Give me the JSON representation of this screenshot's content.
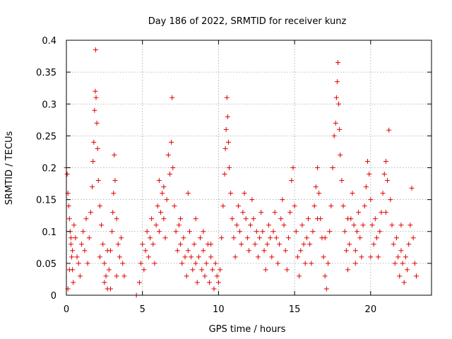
{
  "chart_data": {
    "type": "scatter",
    "title": "Day 186 of 2022, SRMTID for receiver kunz",
    "xlabel": "GPS time / hours",
    "ylabel": "SRMTID / TECUs",
    "xlim": [
      0,
      24
    ],
    "ylim": [
      0,
      0.4
    ],
    "xticks": [
      0,
      5,
      10,
      15,
      20
    ],
    "xtick_labels": [
      "0",
      "5",
      "10",
      "15",
      "20"
    ],
    "yticks": [
      0,
      0.05,
      0.1,
      0.15,
      0.2,
      0.25,
      0.3,
      0.35,
      0.4
    ],
    "ytick_labels": [
      "0",
      "0.05",
      "0.1",
      "0.15",
      "0.2",
      "0.25",
      "0.3",
      "0.35",
      "0.4"
    ],
    "grid": true,
    "marker": "plus",
    "color": "#e00000",
    "series": [
      {
        "name": "SRMTID",
        "points": [
          [
            0.0,
            0.2
          ],
          [
            0.05,
            0.19
          ],
          [
            0.1,
            0.16
          ],
          [
            0.15,
            0.14
          ],
          [
            0.2,
            0.12
          ],
          [
            0.25,
            0.1
          ],
          [
            0.3,
            0.08
          ],
          [
            0.35,
            0.06
          ],
          [
            0.4,
            0.04
          ],
          [
            0.45,
            0.02
          ],
          [
            0.1,
            0.01
          ],
          [
            0.2,
            0.04
          ],
          [
            0.3,
            0.09
          ],
          [
            0.4,
            0.07
          ],
          [
            0.5,
            0.11
          ],
          [
            0.6,
            0.09
          ],
          [
            0.7,
            0.06
          ],
          [
            0.8,
            0.05
          ],
          [
            0.9,
            0.03
          ],
          [
            1.0,
            0.08
          ],
          [
            1.1,
            0.1
          ],
          [
            1.2,
            0.07
          ],
          [
            1.3,
            0.12
          ],
          [
            1.4,
            0.05
          ],
          [
            1.5,
            0.09
          ],
          [
            1.6,
            0.13
          ],
          [
            1.7,
            0.17
          ],
          [
            1.75,
            0.21
          ],
          [
            1.8,
            0.24
          ],
          [
            1.85,
            0.29
          ],
          [
            1.9,
            0.32
          ],
          [
            1.92,
            0.385
          ],
          [
            1.95,
            0.31
          ],
          [
            2.0,
            0.27
          ],
          [
            2.05,
            0.23
          ],
          [
            2.1,
            0.18
          ],
          [
            2.2,
            0.14
          ],
          [
            2.3,
            0.11
          ],
          [
            2.4,
            0.08
          ],
          [
            2.5,
            0.05
          ],
          [
            2.6,
            0.03
          ],
          [
            2.7,
            0.01
          ],
          [
            2.8,
            0.04
          ],
          [
            2.9,
            0.07
          ],
          [
            3.0,
            0.1
          ],
          [
            3.05,
            0.13
          ],
          [
            3.1,
            0.16
          ],
          [
            3.15,
            0.22
          ],
          [
            3.2,
            0.18
          ],
          [
            3.3,
            0.12
          ],
          [
            3.4,
            0.08
          ],
          [
            3.5,
            0.06
          ],
          [
            3.6,
            0.09
          ],
          [
            3.7,
            0.05
          ],
          [
            3.8,
            0.03
          ],
          [
            2.2,
            0.06
          ],
          [
            2.5,
            0.02
          ],
          [
            2.7,
            0.07
          ],
          [
            2.9,
            0.01
          ],
          [
            3.3,
            0.03
          ],
          [
            4.6,
            0.0
          ],
          [
            4.8,
            0.02
          ],
          [
            4.9,
            0.05
          ],
          [
            5.0,
            0.08
          ],
          [
            5.1,
            0.04
          ],
          [
            5.2,
            0.07
          ],
          [
            5.3,
            0.1
          ],
          [
            5.4,
            0.06
          ],
          [
            5.5,
            0.09
          ],
          [
            5.6,
            0.12
          ],
          [
            5.7,
            0.08
          ],
          [
            5.8,
            0.05
          ],
          [
            5.9,
            0.11
          ],
          [
            6.0,
            0.14
          ],
          [
            6.1,
            0.1
          ],
          [
            6.2,
            0.13
          ],
          [
            6.3,
            0.16
          ],
          [
            6.4,
            0.12
          ],
          [
            6.5,
            0.09
          ],
          [
            6.6,
            0.15
          ],
          [
            6.7,
            0.22
          ],
          [
            6.8,
            0.19
          ],
          [
            6.9,
            0.24
          ],
          [
            6.95,
            0.31
          ],
          [
            7.0,
            0.2
          ],
          [
            7.1,
            0.14
          ],
          [
            7.2,
            0.1
          ],
          [
            7.3,
            0.07
          ],
          [
            7.4,
            0.11
          ],
          [
            7.5,
            0.08
          ],
          [
            7.6,
            0.05
          ],
          [
            7.7,
            0.09
          ],
          [
            7.8,
            0.06
          ],
          [
            7.9,
            0.03
          ],
          [
            8.0,
            0.07
          ],
          [
            8.1,
            0.1
          ],
          [
            8.2,
            0.06
          ],
          [
            8.3,
            0.04
          ],
          [
            8.4,
            0.08
          ],
          [
            8.5,
            0.05
          ],
          [
            8.6,
            0.02
          ],
          [
            8.7,
            0.06
          ],
          [
            8.8,
            0.09
          ],
          [
            8.9,
            0.04
          ],
          [
            9.0,
            0.07
          ],
          [
            9.1,
            0.03
          ],
          [
            9.2,
            0.05
          ],
          [
            9.3,
            0.08
          ],
          [
            9.4,
            0.02
          ],
          [
            9.5,
            0.06
          ],
          [
            9.6,
            0.04
          ],
          [
            9.7,
            0.01
          ],
          [
            9.8,
            0.05
          ],
          [
            9.9,
            0.03
          ],
          [
            10.0,
            0.02
          ],
          [
            6.4,
            0.17
          ],
          [
            6.1,
            0.18
          ],
          [
            7.5,
            0.12
          ],
          [
            8.0,
            0.16
          ],
          [
            8.5,
            0.12
          ],
          [
            9.0,
            0.1
          ],
          [
            9.5,
            0.08
          ],
          [
            10.1,
            0.04
          ],
          [
            10.2,
            0.09
          ],
          [
            10.3,
            0.14
          ],
          [
            10.4,
            0.19
          ],
          [
            10.45,
            0.23
          ],
          [
            10.5,
            0.26
          ],
          [
            10.55,
            0.31
          ],
          [
            10.6,
            0.28
          ],
          [
            10.65,
            0.24
          ],
          [
            10.7,
            0.2
          ],
          [
            10.8,
            0.16
          ],
          [
            10.9,
            0.12
          ],
          [
            11.0,
            0.09
          ],
          [
            11.1,
            0.06
          ],
          [
            11.2,
            0.11
          ],
          [
            11.3,
            0.14
          ],
          [
            11.4,
            0.1
          ],
          [
            11.5,
            0.08
          ],
          [
            11.6,
            0.13
          ],
          [
            11.7,
            0.16
          ],
          [
            11.8,
            0.12
          ],
          [
            11.9,
            0.09
          ],
          [
            12.0,
            0.07
          ],
          [
            12.1,
            0.11
          ],
          [
            12.2,
            0.15
          ],
          [
            12.3,
            0.12
          ],
          [
            12.4,
            0.08
          ],
          [
            12.5,
            0.1
          ],
          [
            12.6,
            0.06
          ],
          [
            12.7,
            0.09
          ],
          [
            12.8,
            0.13
          ],
          [
            12.9,
            0.1
          ],
          [
            13.0,
            0.07
          ],
          [
            13.1,
            0.04
          ],
          [
            13.2,
            0.08
          ],
          [
            13.3,
            0.11
          ],
          [
            13.4,
            0.09
          ],
          [
            13.5,
            0.06
          ],
          [
            13.6,
            0.1
          ],
          [
            13.7,
            0.13
          ],
          [
            13.8,
            0.09
          ],
          [
            13.9,
            0.05
          ],
          [
            14.0,
            0.08
          ],
          [
            14.1,
            0.12
          ],
          [
            14.2,
            0.15
          ],
          [
            14.3,
            0.11
          ],
          [
            14.4,
            0.07
          ],
          [
            14.5,
            0.04
          ],
          [
            14.6,
            0.09
          ],
          [
            14.7,
            0.13
          ],
          [
            14.8,
            0.18
          ],
          [
            14.9,
            0.2
          ],
          [
            15.0,
            0.14
          ],
          [
            15.1,
            0.1
          ],
          [
            15.2,
            0.06
          ],
          [
            15.3,
            0.03
          ],
          [
            15.4,
            0.07
          ],
          [
            15.5,
            0.11
          ],
          [
            15.6,
            0.08
          ],
          [
            15.7,
            0.05
          ],
          [
            15.8,
            0.09
          ],
          [
            15.9,
            0.12
          ],
          [
            16.0,
            0.08
          ],
          [
            16.1,
            0.05
          ],
          [
            16.2,
            0.1
          ],
          [
            16.3,
            0.14
          ],
          [
            16.4,
            0.17
          ],
          [
            16.5,
            0.2
          ],
          [
            16.6,
            0.16
          ],
          [
            16.7,
            0.12
          ],
          [
            16.8,
            0.09
          ],
          [
            16.9,
            0.06
          ],
          [
            17.0,
            0.03
          ],
          [
            17.1,
            0.01
          ],
          [
            17.2,
            0.05
          ],
          [
            17.3,
            0.1
          ],
          [
            17.4,
            0.14
          ],
          [
            17.5,
            0.2
          ],
          [
            17.6,
            0.25
          ],
          [
            17.7,
            0.27
          ],
          [
            17.75,
            0.31
          ],
          [
            17.8,
            0.335
          ],
          [
            17.85,
            0.365
          ],
          [
            17.9,
            0.3
          ],
          [
            17.95,
            0.26
          ],
          [
            18.0,
            0.22
          ],
          [
            18.1,
            0.18
          ],
          [
            18.2,
            0.14
          ],
          [
            18.3,
            0.1
          ],
          [
            18.4,
            0.07
          ],
          [
            18.5,
            0.04
          ],
          [
            18.6,
            0.08
          ],
          [
            18.7,
            0.12
          ],
          [
            18.8,
            0.16
          ],
          [
            18.9,
            0.11
          ],
          [
            19.0,
            0.07
          ],
          [
            19.1,
            0.1
          ],
          [
            19.2,
            0.13
          ],
          [
            19.3,
            0.09
          ],
          [
            19.4,
            0.06
          ],
          [
            19.5,
            0.11
          ],
          [
            19.6,
            0.14
          ],
          [
            19.7,
            0.17
          ],
          [
            19.8,
            0.21
          ],
          [
            19.9,
            0.19
          ],
          [
            20.0,
            0.15
          ],
          [
            20.1,
            0.11
          ],
          [
            20.2,
            0.08
          ],
          [
            20.3,
            0.12
          ],
          [
            20.4,
            0.09
          ],
          [
            20.5,
            0.06
          ],
          [
            20.6,
            0.1
          ],
          [
            20.7,
            0.13
          ],
          [
            20.8,
            0.16
          ],
          [
            20.9,
            0.19
          ],
          [
            21.0,
            0.21
          ],
          [
            21.1,
            0.18
          ],
          [
            21.2,
            0.259
          ],
          [
            21.3,
            0.15
          ],
          [
            21.4,
            0.11
          ],
          [
            21.5,
            0.08
          ],
          [
            21.6,
            0.05
          ],
          [
            21.7,
            0.09
          ],
          [
            21.8,
            0.06
          ],
          [
            21.9,
            0.03
          ],
          [
            22.0,
            0.07
          ],
          [
            22.1,
            0.05
          ],
          [
            22.2,
            0.02
          ],
          [
            22.3,
            0.06
          ],
          [
            22.4,
            0.04
          ],
          [
            22.5,
            0.08
          ],
          [
            22.6,
            0.11
          ],
          [
            22.7,
            0.168
          ],
          [
            22.8,
            0.09
          ],
          [
            22.9,
            0.05
          ],
          [
            23.0,
            0.03
          ],
          [
            16.5,
            0.12
          ],
          [
            17.0,
            0.09
          ],
          [
            18.5,
            0.12
          ],
          [
            19.0,
            0.05
          ],
          [
            20.0,
            0.06
          ],
          [
            21.0,
            0.13
          ],
          [
            22.0,
            0.11
          ]
        ]
      }
    ]
  }
}
